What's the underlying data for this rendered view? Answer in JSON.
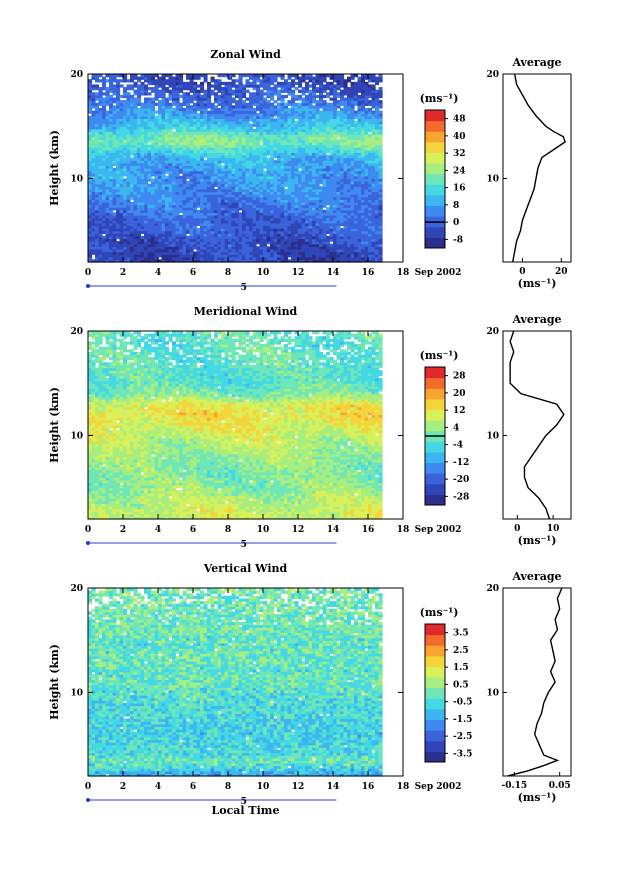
{
  "chart_data": [
    {
      "type": "heatmap",
      "title": "Zonal Wind",
      "ylabel": "Height (km)",
      "xlabel": "",
      "xlim": [
        0,
        18
      ],
      "ylim": [
        2,
        20
      ],
      "xticks": [
        "0",
        "2",
        "4",
        "6",
        "8",
        "10",
        "12",
        "14",
        "16",
        "18"
      ],
      "yticks": [
        "20",
        "10"
      ],
      "date_label": "Sep 2002",
      "day_label": "5",
      "colorbar_unit": "(ms⁻¹)",
      "colorbar_ticks": [
        "48",
        "40",
        "32",
        "24",
        "16",
        "8",
        "0",
        "-8"
      ],
      "colorbar_range": [
        -12,
        52
      ],
      "contour_level": 0,
      "profile": {
        "title": "Average",
        "xlabel": "(ms⁻¹)",
        "xlim": [
          -10,
          25
        ],
        "xticks": [
          "0",
          "20"
        ],
        "yticks": [
          "20",
          "10"
        ],
        "heights": [
          2,
          3,
          4,
          5,
          6,
          7,
          8,
          9,
          10,
          11,
          12,
          13,
          13.5,
          14,
          14.5,
          15,
          16,
          17,
          18,
          19,
          20
        ],
        "values": [
          -5,
          -4,
          -3,
          -1,
          0,
          2,
          4,
          6,
          7,
          8,
          10,
          18,
          22,
          21,
          16,
          12,
          7,
          3,
          0,
          -3,
          -4
        ]
      }
    },
    {
      "type": "heatmap",
      "title": "Meridional Wind",
      "ylabel": "Height (km)",
      "xlabel": "",
      "xlim": [
        0,
        18
      ],
      "ylim": [
        2,
        20
      ],
      "xticks": [
        "0",
        "2",
        "4",
        "6",
        "8",
        "10",
        "12",
        "14",
        "16",
        "18"
      ],
      "yticks": [
        "20",
        "10"
      ],
      "date_label": "Sep 2002",
      "day_label": "5",
      "colorbar_unit": "(ms⁻¹)",
      "colorbar_ticks": [
        "28",
        "20",
        "12",
        "4",
        "-4",
        "-12",
        "-20",
        "-28"
      ],
      "colorbar_range": [
        -32,
        32
      ],
      "contour_level": 0,
      "profile": {
        "title": "Average",
        "xlabel": "(ms⁻¹)",
        "xlim": [
          -4,
          15
        ],
        "xticks": [
          "0",
          "10"
        ],
        "yticks": [
          "20",
          "10"
        ],
        "heights": [
          2,
          3,
          4,
          5,
          6,
          7,
          8,
          9,
          10,
          11,
          12,
          13,
          14,
          15,
          16,
          17,
          18,
          19,
          20
        ],
        "values": [
          9,
          8,
          6,
          3,
          2,
          2,
          4,
          6,
          8,
          11,
          13,
          11,
          1,
          -2,
          -2,
          -2,
          -1,
          -2,
          -1
        ]
      }
    },
    {
      "type": "heatmap",
      "title": "Vertical Wind",
      "ylabel": "Height (km)",
      "xlabel": "Local Time",
      "xlim": [
        0,
        18
      ],
      "ylim": [
        2,
        20
      ],
      "xticks": [
        "0",
        "2",
        "4",
        "6",
        "8",
        "10",
        "12",
        "14",
        "16",
        "18"
      ],
      "yticks": [
        "20",
        "10"
      ],
      "date_label": "Sep 2002",
      "day_label": "5",
      "colorbar_unit": "(ms⁻¹)",
      "colorbar_ticks": [
        "3.5",
        "2.5",
        "1.5",
        "0.5",
        "-0.5",
        "-1.5",
        "-2.5",
        "-3.5"
      ],
      "colorbar_range": [
        -4,
        4
      ],
      "profile": {
        "title": "Average",
        "xlabel": "(ms⁻¹)",
        "xlim": [
          -0.2,
          0.1
        ],
        "xticks": [
          "-0.15",
          "0.05"
        ],
        "yticks": [
          "20",
          "10"
        ],
        "heights": [
          2,
          2.5,
          3,
          3.5,
          4,
          5,
          6,
          7,
          8,
          9,
          10,
          11,
          12,
          13,
          14,
          15,
          16,
          17,
          18,
          19,
          20
        ],
        "values": [
          -0.18,
          -0.09,
          -0.02,
          0.04,
          -0.02,
          -0.04,
          -0.06,
          -0.05,
          -0.03,
          -0.02,
          0.0,
          0.03,
          0.01,
          0.03,
          0.02,
          0.01,
          0.04,
          0.03,
          0.05,
          0.04,
          0.06
        ]
      }
    }
  ]
}
